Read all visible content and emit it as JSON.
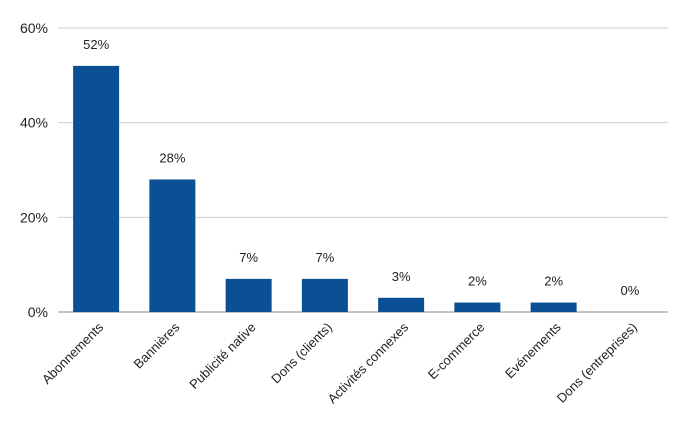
{
  "chart_data": {
    "type": "bar",
    "categories": [
      "Abonnements",
      "Bannières",
      "Publicité native",
      "Dons (clients)",
      "Activités connexes",
      "E-commerce",
      "Evénements",
      "Dons (entreprises)"
    ],
    "values": [
      52,
      28,
      7,
      7,
      3,
      2,
      2,
      0
    ],
    "data_labels": [
      "52%",
      "28%",
      "7%",
      "7%",
      "3%",
      "2%",
      "2%",
      "0%"
    ],
    "y_ticks": [
      0,
      20,
      40,
      60
    ],
    "y_tick_labels": [
      "0%",
      "20%",
      "40%",
      "60%"
    ],
    "ylim": [
      0,
      60
    ],
    "grid": true,
    "bar_color": "#0b4f94",
    "grid_color": "#d0d0d0",
    "title": "",
    "xlabel": "",
    "ylabel": ""
  }
}
